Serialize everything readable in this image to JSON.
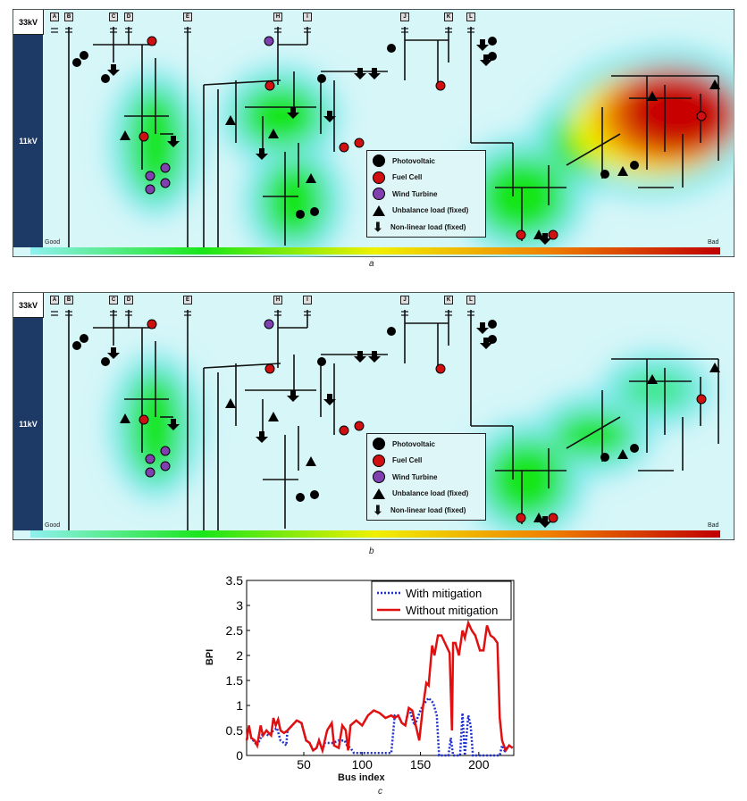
{
  "panels": [
    {
      "label": "a",
      "variant": "without-mitigation"
    },
    {
      "label": "b",
      "variant": "with-mitigation"
    }
  ],
  "diagram": {
    "voltage_33": "33kV",
    "voltage_11": "11kV",
    "feeder_tags": [
      "A",
      "B",
      "C",
      "D",
      "E",
      "H",
      "I",
      "J",
      "K",
      "L"
    ],
    "colorbar": {
      "low_label": "Good",
      "high_label": "Bad",
      "colors": [
        "#8ff0f0",
        "#19e619",
        "#f0f000",
        "#f08000",
        "#c00000"
      ]
    },
    "legend": [
      {
        "label": "Photovoltaic",
        "icon": "black-circle",
        "color": "#000000"
      },
      {
        "label": "Fuel Cell",
        "icon": "red-circle",
        "color": "#d01010"
      },
      {
        "label": "Wind Turbine",
        "icon": "purple-circle",
        "color": "#8040b0"
      },
      {
        "label": "Unbalance load (fixed)",
        "icon": "triangle",
        "color": "#000000"
      },
      {
        "label": "Non-linear load (fixed)",
        "icon": "down-arrow",
        "color": "#000000"
      }
    ]
  },
  "chart_data": {
    "type": "line",
    "caption": "c",
    "xlabel": "Bus index",
    "ylabel": "BPI",
    "xlim": [
      1,
      230
    ],
    "ylim": [
      0,
      3.5
    ],
    "xticks": [
      50,
      100,
      150,
      200
    ],
    "yticks": [
      0,
      0.5,
      1,
      1.5,
      2,
      2.5,
      3,
      3.5
    ],
    "ytick_labels": [
      "0",
      "0.5",
      "1",
      "1.5",
      "2",
      "2.5",
      "3",
      "3.5"
    ],
    "xtick_labels": [
      "50",
      "100",
      "150",
      "200"
    ],
    "grid": false,
    "legend_position": "top-right",
    "series": [
      {
        "name": "With mitigation",
        "color": "#1f2fd0",
        "style": "dotted",
        "x": [
          1,
          5,
          10,
          15,
          20,
          24,
          27,
          30,
          33,
          35,
          36,
          40,
          44,
          48,
          52,
          55,
          58,
          61,
          63,
          66,
          68,
          75,
          80,
          85,
          87,
          90,
          93,
          125,
          128,
          131,
          134,
          137,
          140,
          145,
          150,
          152,
          157,
          161,
          164,
          166,
          174,
          176,
          178,
          184,
          186,
          188,
          191,
          193,
          195,
          218,
          220,
          222,
          226,
          229
        ],
        "y": [
          0.35,
          0.35,
          0.2,
          0.45,
          0.4,
          0.5,
          0.55,
          0.3,
          0.25,
          0.2,
          0.5,
          0.6,
          0.7,
          0.65,
          0.3,
          0.25,
          0.1,
          0.15,
          0.3,
          0.1,
          0.25,
          0.25,
          0.3,
          0.3,
          0.2,
          0.15,
          0.05,
          0.05,
          0.8,
          0.8,
          0.65,
          0.6,
          0.95,
          0.6,
          0.9,
          1.0,
          1.15,
          1.05,
          0.8,
          0.0,
          0.0,
          0.35,
          0.0,
          0.0,
          0.85,
          0.0,
          0.8,
          0.6,
          0.0,
          0.0,
          0.2,
          0.1,
          0.2,
          0.15
        ]
      },
      {
        "name": "Without mitigation",
        "color": "#e01010",
        "style": "solid",
        "x": [
          1,
          3,
          5,
          8,
          10,
          13,
          15,
          18,
          20,
          22,
          24,
          26,
          28,
          30,
          33,
          36,
          40,
          44,
          48,
          52,
          55,
          58,
          61,
          63,
          66,
          70,
          74,
          76,
          80,
          83,
          86,
          88,
          90,
          95,
          100,
          105,
          110,
          115,
          120,
          125,
          128,
          131,
          134,
          137,
          140,
          143,
          146,
          149,
          152,
          155,
          157,
          160,
          162,
          165,
          168,
          172,
          175,
          177,
          178,
          180,
          183,
          186,
          188,
          191,
          194,
          197,
          201,
          204,
          207,
          210,
          213,
          216,
          218,
          220,
          223,
          226,
          229
        ],
        "y": [
          0.3,
          0.6,
          0.35,
          0.3,
          0.2,
          0.6,
          0.4,
          0.5,
          0.45,
          0.4,
          0.75,
          0.6,
          0.72,
          0.5,
          0.45,
          0.5,
          0.6,
          0.7,
          0.65,
          0.3,
          0.25,
          0.1,
          0.15,
          0.3,
          0.1,
          0.5,
          0.65,
          0.2,
          0.15,
          0.6,
          0.5,
          0.1,
          0.6,
          0.7,
          0.6,
          0.8,
          0.9,
          0.85,
          0.75,
          0.8,
          0.75,
          0.8,
          0.65,
          0.6,
          0.95,
          0.9,
          0.6,
          0.3,
          0.95,
          1.45,
          1.4,
          2.2,
          2.0,
          2.4,
          2.4,
          2.2,
          2.05,
          0.5,
          2.25,
          2.25,
          2.0,
          2.5,
          2.35,
          2.65,
          2.5,
          2.4,
          2.1,
          2.1,
          2.6,
          2.4,
          2.35,
          2.25,
          0.75,
          0.3,
          0.1,
          0.2,
          0.15
        ]
      }
    ]
  }
}
